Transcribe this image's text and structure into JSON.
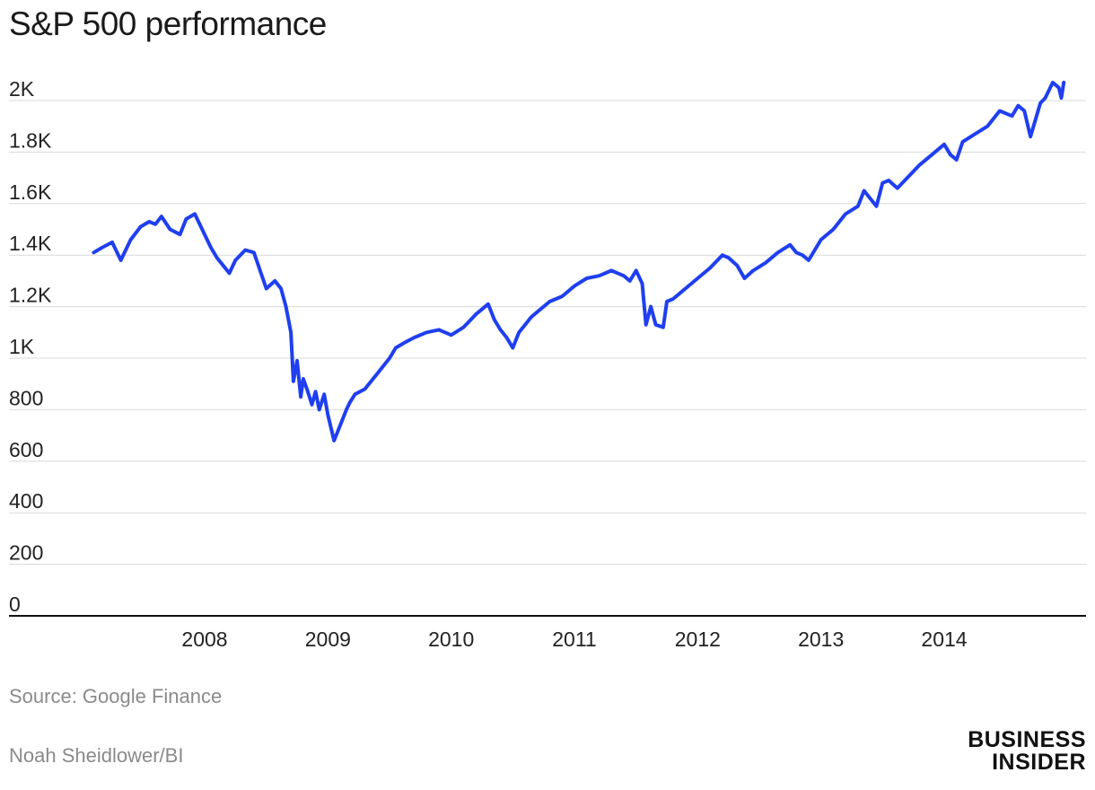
{
  "chart_data": {
    "type": "line",
    "title": "S&P 500 performance",
    "xlabel": "",
    "ylabel": "",
    "y_ticks": [
      {
        "value": 0,
        "label": "0"
      },
      {
        "value": 200,
        "label": "200"
      },
      {
        "value": 400,
        "label": "400"
      },
      {
        "value": 600,
        "label": "600"
      },
      {
        "value": 800,
        "label": "800"
      },
      {
        "value": 1000,
        "label": "1K"
      },
      {
        "value": 1200,
        "label": "1.2K"
      },
      {
        "value": 1400,
        "label": "1.4K"
      },
      {
        "value": 1600,
        "label": "1.6K"
      },
      {
        "value": 1800,
        "label": "1.8K"
      },
      {
        "value": 2000,
        "label": "2K"
      }
    ],
    "x_ticks": [
      {
        "value": 2008,
        "label": "2008"
      },
      {
        "value": 2009,
        "label": "2009"
      },
      {
        "value": 2010,
        "label": "2010"
      },
      {
        "value": 2011,
        "label": "2011"
      },
      {
        "value": 2012,
        "label": "2012"
      },
      {
        "value": 2013,
        "label": "2013"
      },
      {
        "value": 2014,
        "label": "2014"
      }
    ],
    "ylim": [
      0,
      2000
    ],
    "grid": true,
    "line_color": "#1f3ff0",
    "series": [
      {
        "x": [
          2007.1,
          2007.17,
          2007.25,
          2007.32,
          2007.4,
          2007.48,
          2007.55,
          2007.6,
          2007.65,
          2007.72,
          2007.8,
          2007.85,
          2007.92,
          2008.0,
          2008.05,
          2008.1,
          2008.2,
          2008.25,
          2008.33,
          2008.4,
          2008.45,
          2008.5,
          2008.57,
          2008.62,
          2008.66,
          2008.7,
          2008.72,
          2008.75,
          2008.78,
          2008.8,
          2008.83,
          2008.87,
          2008.9,
          2008.93,
          2008.97,
          2009.0,
          2009.05,
          2009.1,
          2009.15,
          2009.18,
          2009.22,
          2009.3,
          2009.4,
          2009.5,
          2009.55,
          2009.62,
          2009.7,
          2009.8,
          2009.9,
          2010.0,
          2010.1,
          2010.2,
          2010.3,
          2010.35,
          2010.4,
          2010.45,
          2010.5,
          2010.55,
          2010.6,
          2010.65,
          2010.7,
          2010.8,
          2010.9,
          2011.0,
          2011.1,
          2011.2,
          2011.3,
          2011.35,
          2011.4,
          2011.45,
          2011.5,
          2011.55,
          2011.58,
          2011.62,
          2011.66,
          2011.72,
          2011.75,
          2011.8,
          2011.85,
          2011.9,
          2012.0,
          2012.1,
          2012.2,
          2012.25,
          2012.32,
          2012.38,
          2012.45,
          2012.55,
          2012.65,
          2012.75,
          2012.8,
          2012.85,
          2012.9,
          2012.95,
          2013.0,
          2013.1,
          2013.2,
          2013.3,
          2013.35,
          2013.4,
          2013.45,
          2013.5,
          2013.55,
          2013.62,
          2013.7,
          2013.8,
          2013.9,
          2014.0,
          2014.05,
          2014.1,
          2014.15,
          2014.25,
          2014.35,
          2014.45,
          2014.55,
          2014.6,
          2014.65,
          2014.7,
          2014.78,
          2014.82,
          2014.88,
          2014.93,
          2014.95,
          2014.97
        ],
        "values": [
          1410,
          1430,
          1450,
          1380,
          1460,
          1510,
          1530,
          1520,
          1550,
          1500,
          1480,
          1540,
          1560,
          1480,
          1430,
          1390,
          1330,
          1380,
          1420,
          1410,
          1340,
          1270,
          1300,
          1270,
          1200,
          1100,
          910,
          990,
          850,
          920,
          880,
          820,
          870,
          800,
          860,
          780,
          680,
          740,
          800,
          830,
          860,
          880,
          940,
          1000,
          1040,
          1060,
          1080,
          1100,
          1110,
          1090,
          1120,
          1170,
          1210,
          1150,
          1110,
          1080,
          1040,
          1100,
          1130,
          1160,
          1180,
          1220,
          1240,
          1280,
          1310,
          1320,
          1340,
          1330,
          1320,
          1300,
          1340,
          1290,
          1130,
          1200,
          1130,
          1120,
          1220,
          1230,
          1250,
          1270,
          1310,
          1350,
          1400,
          1390,
          1360,
          1310,
          1340,
          1370,
          1410,
          1440,
          1410,
          1400,
          1380,
          1420,
          1460,
          1500,
          1560,
          1590,
          1650,
          1620,
          1590,
          1680,
          1690,
          1660,
          1700,
          1750,
          1790,
          1830,
          1790,
          1770,
          1840,
          1870,
          1900,
          1960,
          1940,
          1980,
          1960,
          1860,
          1990,
          2010,
          2070,
          2050,
          2010,
          2070
        ]
      }
    ]
  },
  "footer": {
    "source": "Source: Google Finance",
    "credit": "Noah Sheidlower/BI",
    "brand_line1": "BUSINESS",
    "brand_line2": "INSIDER"
  }
}
